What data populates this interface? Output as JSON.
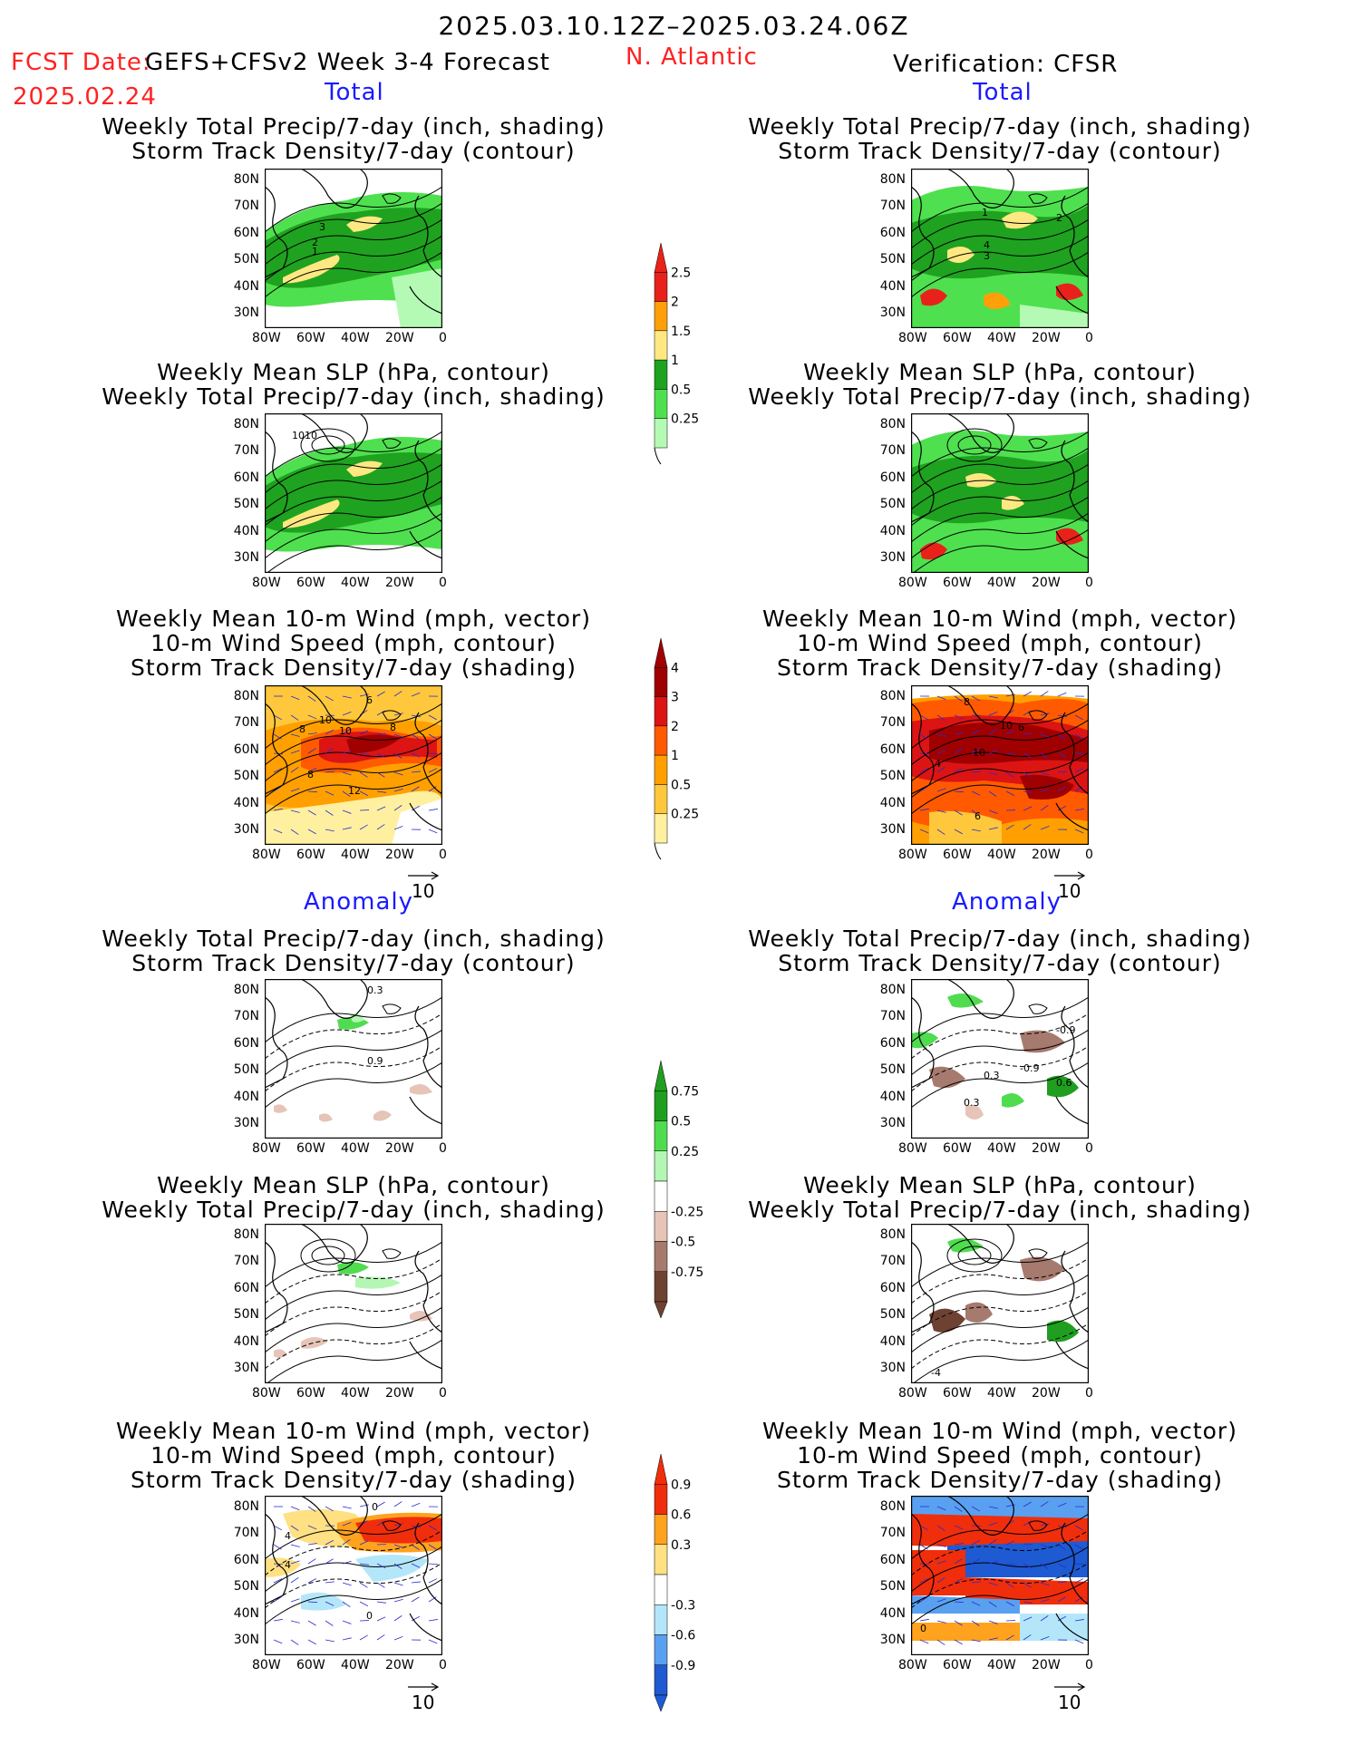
{
  "header": {
    "date_range": "2025.03.10.12Z–2025.03.24.06Z",
    "fcst_label": "FCST Date:",
    "fcst_date": "2025.02.24",
    "model": "GEFS+CFSv2 Week 3-4 Forecast",
    "region": "N. Atlantic",
    "verification": "Verification: CFSR"
  },
  "sections": {
    "total_label": "Total",
    "anomaly_label": "Anomaly"
  },
  "titles": {
    "precip_storm": [
      "Weekly Total Precip/7-day (inch, shading)",
      "Storm Track Density/7-day (contour)"
    ],
    "slp_precip": [
      "Weekly Mean SLP (hPa, contour)",
      "Weekly Total Precip/7-day (inch, shading)"
    ],
    "wind_storm": [
      "Weekly Mean 10-m Wind (mph, vector)",
      "10-m Wind Speed (mph, contour)",
      "Storm Track Density/7-day (shading)"
    ]
  },
  "axes": {
    "lat_ticks": [
      "80N",
      "70N",
      "60N",
      "50N",
      "40N",
      "30N"
    ],
    "lon_ticks": [
      "80W",
      "60W",
      "40W",
      "20W",
      "0"
    ]
  },
  "vector_reference": "10",
  "contour_labels": {
    "f_ps": [
      "3",
      "2",
      "1"
    ],
    "f_slp": [
      "1010"
    ],
    "f_wind": [
      "6",
      "10",
      "8",
      "10",
      "8",
      "8",
      "12"
    ],
    "v_ps": [
      "1",
      "2",
      "4",
      "3"
    ],
    "v_wind": [
      "8",
      "10",
      "6",
      "4",
      "10",
      "6"
    ],
    "fa_ps": [
      "0.3",
      "0.9"
    ],
    "va_ps": [
      "-0.9",
      "0.3",
      "-0.9",
      "0.6",
      "0.3"
    ],
    "fa_wind": [
      "0",
      "4",
      "4",
      "0"
    ],
    "va_wind": [
      "0"
    ],
    "va_slp": [
      "-4"
    ]
  },
  "legends": {
    "precip": {
      "labels": [
        "2.5",
        "2",
        "1.5",
        "1",
        "0.5",
        "0.25"
      ],
      "colors": [
        "#e8221a",
        "#ffa00a",
        "#ffe882",
        "#1fa21f",
        "#4fe04f",
        "#b4fab4"
      ]
    },
    "storm": {
      "labels": [
        "4",
        "3",
        "2",
        "1",
        "0.5",
        "0.25"
      ],
      "colors": [
        "#a00000",
        "#dc1414",
        "#ff5a00",
        "#ffa000",
        "#ffc83c",
        "#fff0a0"
      ]
    },
    "precip_anom": {
      "labels": [
        "0.75",
        "0.5",
        "0.25",
        "-0.25",
        "-0.5",
        "-0.75"
      ],
      "colors": [
        "#1f9e1f",
        "#4fdc4f",
        "#b4f6b4",
        "#ffffff",
        "#e6c4b8",
        "#a67a6e",
        "#6e4232"
      ]
    },
    "storm_anom": {
      "labels": [
        "0.9",
        "0.6",
        "0.3",
        "-0.3",
        "-0.6",
        "-0.9"
      ],
      "colors": [
        "#f02e0c",
        "#ffa21e",
        "#ffe082",
        "#ffffff",
        "#b4e6fa",
        "#5aa0f0",
        "#1e5ad2"
      ]
    }
  }
}
